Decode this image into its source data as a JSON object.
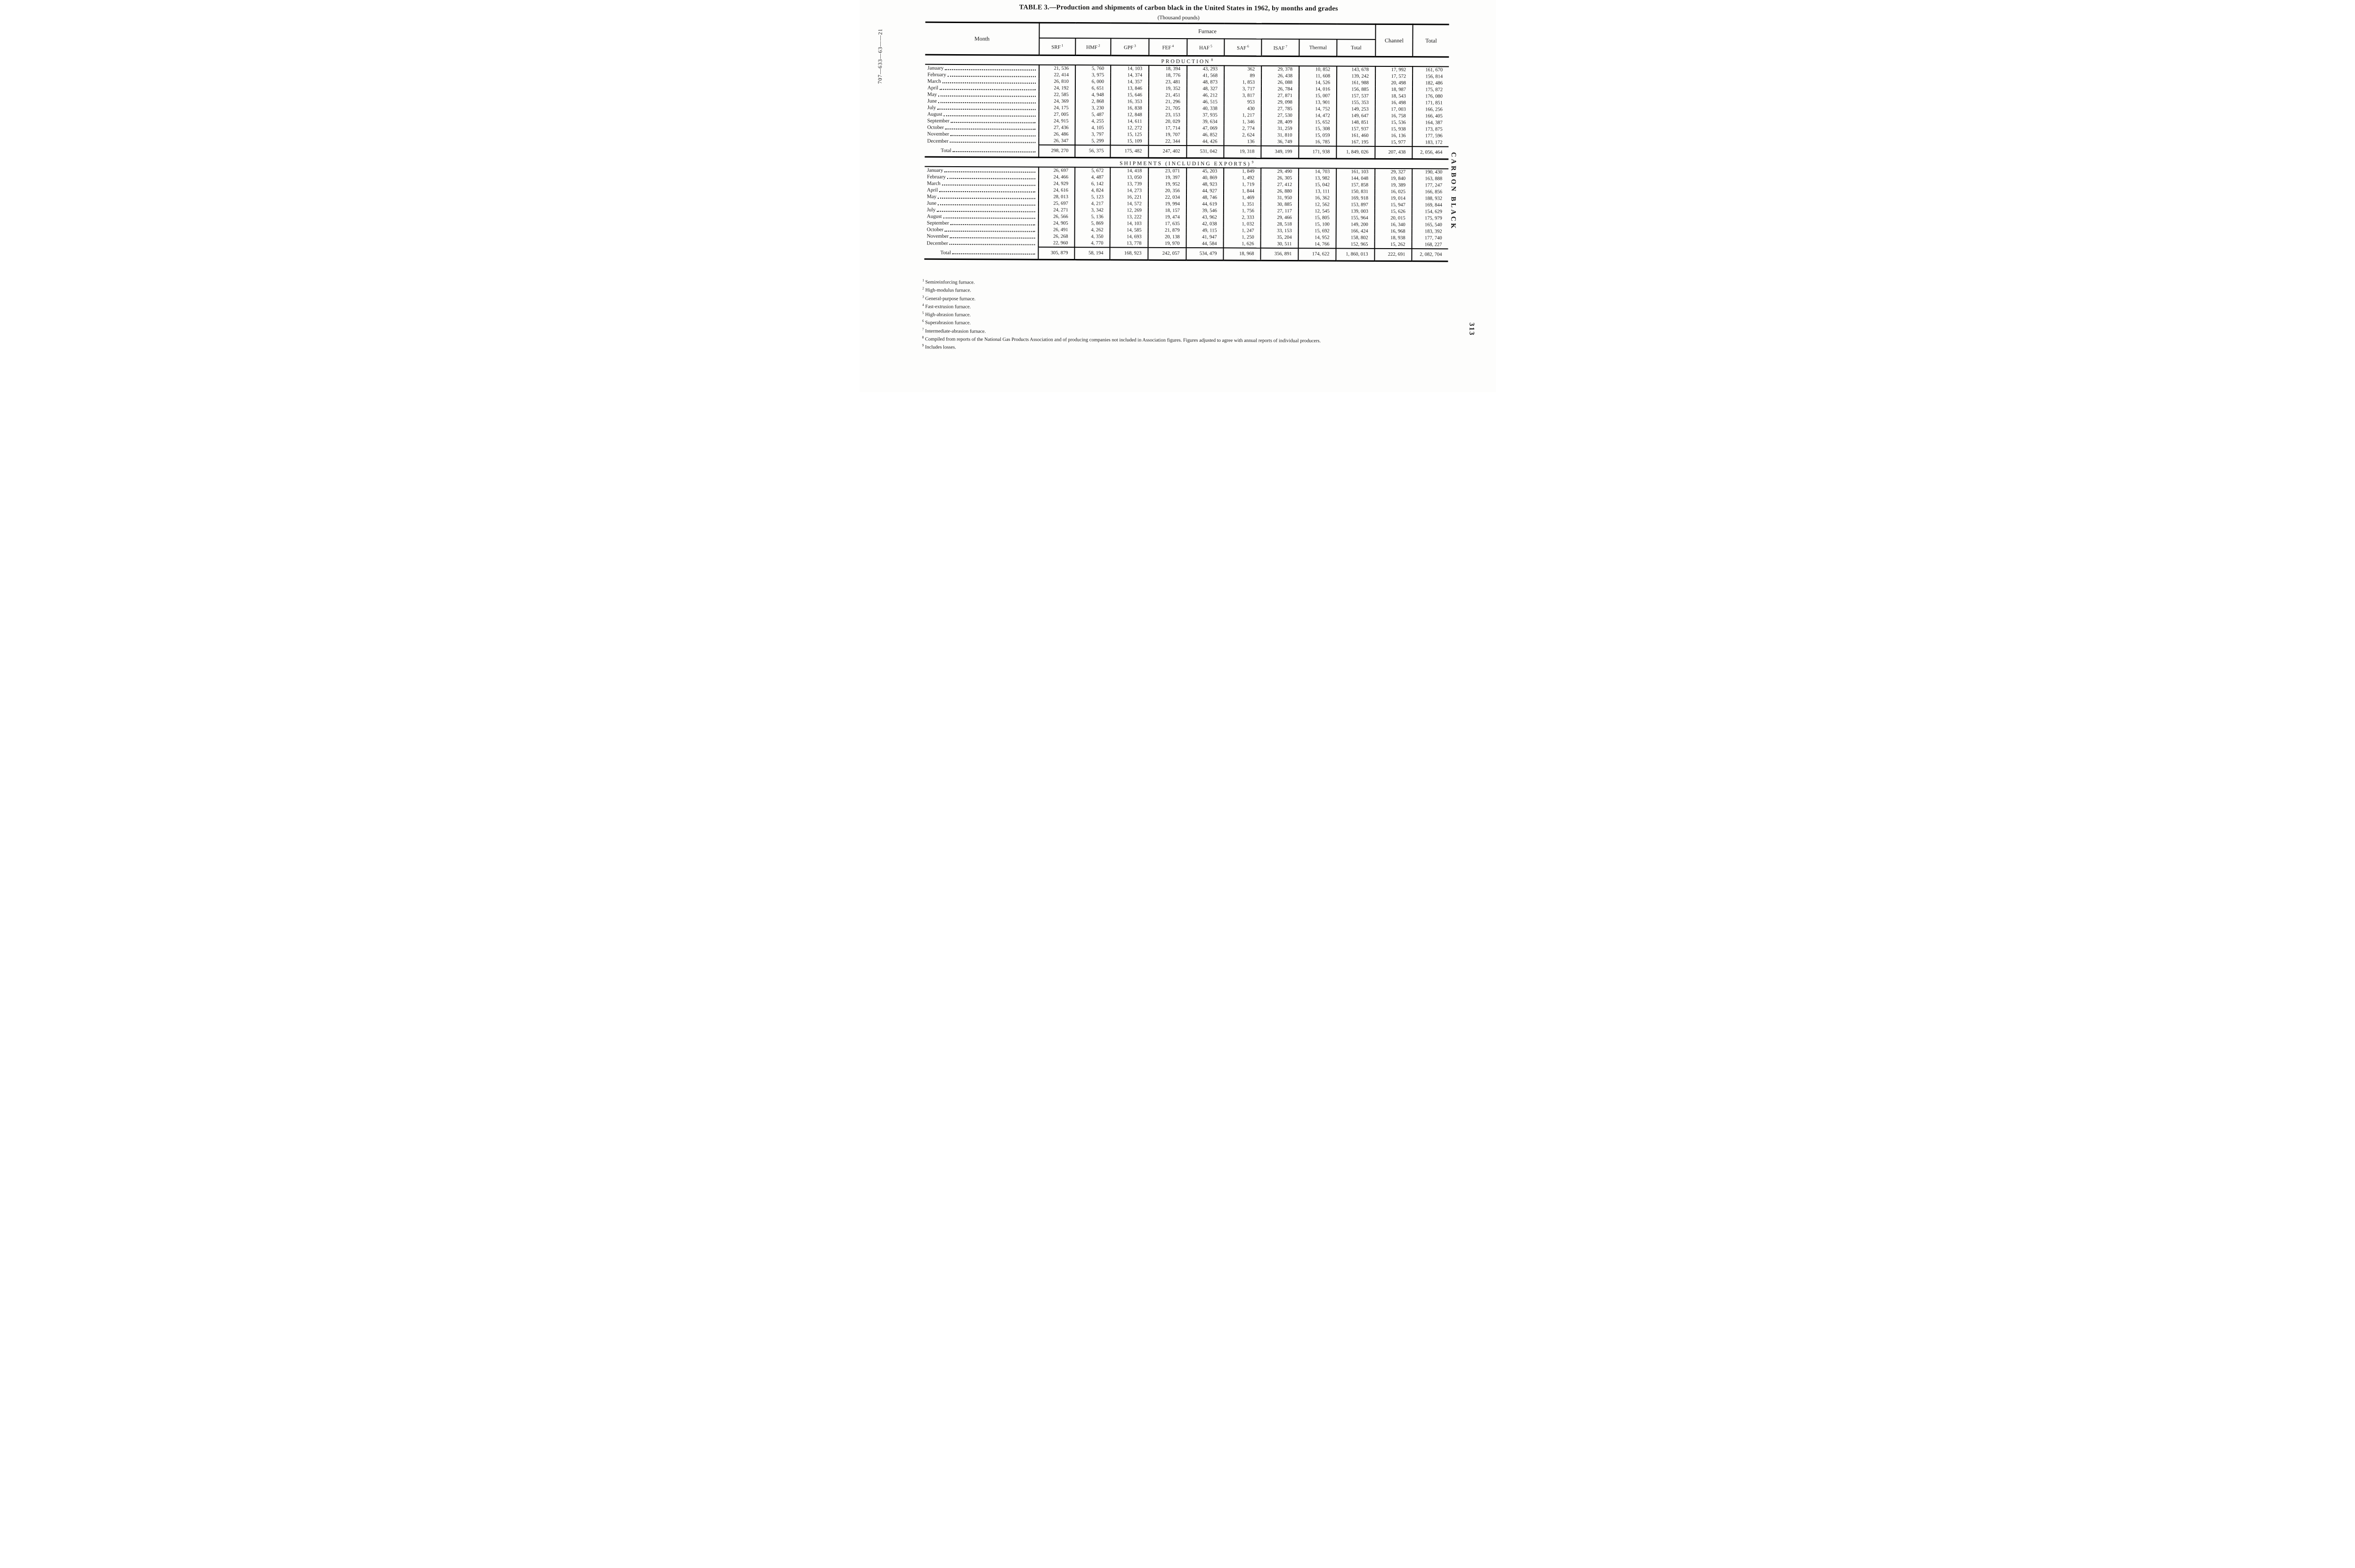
{
  "page": {
    "title": "TABLE 3.—Production and shipments of carbon black in the United States in 1962, by months and grades",
    "subtitle": "(Thousand pounds)",
    "left_margin_code": "707—633—63——21",
    "right_margin_heading": "CARBON BLACK",
    "page_number": "313"
  },
  "table": {
    "col_month": "Month",
    "group_furnace": "Furnace",
    "col_channel": "Channel",
    "col_total": "Total",
    "furnace_cols": [
      {
        "label": "SRF",
        "sup": "1"
      },
      {
        "label": "HMF",
        "sup": "2"
      },
      {
        "label": "GPF",
        "sup": "3"
      },
      {
        "label": "FEF",
        "sup": "4"
      },
      {
        "label": "HAF",
        "sup": "5"
      },
      {
        "label": "SAF",
        "sup": "6"
      },
      {
        "label": "ISAF",
        "sup": "7"
      },
      {
        "label": "Thermal",
        "sup": ""
      },
      {
        "label": "Total",
        "sup": ""
      }
    ],
    "sections": [
      {
        "heading": "PRODUCTION",
        "sup": "8",
        "rows": [
          {
            "month": "January",
            "values": [
              "21, 536",
              "5, 760",
              "14, 103",
              "18, 394",
              "43, 293",
              "362",
              "29, 378",
              "10, 852",
              "143, 678",
              "17, 992",
              "161, 670"
            ]
          },
          {
            "month": "February",
            "values": [
              "22, 414",
              "3, 975",
              "14, 374",
              "18, 776",
              "41, 568",
              "89",
              "26, 438",
              "11, 608",
              "139, 242",
              "17, 572",
              "156, 814"
            ]
          },
          {
            "month": "March",
            "values": [
              "26, 810",
              "6, 000",
              "14, 357",
              "23, 481",
              "48, 873",
              "1, 853",
              "26, 088",
              "14, 526",
              "161, 988",
              "20, 498",
              "182, 486"
            ]
          },
          {
            "month": "April",
            "values": [
              "24, 192",
              "6, 651",
              "13, 846",
              "19, 352",
              "48, 327",
              "3, 717",
              "26, 784",
              "14, 016",
              "156, 885",
              "18, 987",
              "175, 872"
            ]
          },
          {
            "month": "May",
            "values": [
              "22, 585",
              "4, 948",
              "15, 646",
              "21, 451",
              "46, 212",
              "3, 817",
              "27, 871",
              "15, 007",
              "157, 537",
              "18, 543",
              "176, 080"
            ]
          },
          {
            "month": "June",
            "values": [
              "24, 369",
              "2, 868",
              "16, 353",
              "21, 296",
              "46, 515",
              "953",
              "29, 098",
              "13, 901",
              "155, 353",
              "16, 498",
              "171, 851"
            ]
          },
          {
            "month": "July",
            "values": [
              "24, 175",
              "3, 230",
              "16, 838",
              "21, 705",
              "40, 338",
              "430",
              "27, 785",
              "14, 752",
              "149, 253",
              "17, 003",
              "166, 256"
            ]
          },
          {
            "month": "August",
            "values": [
              "27, 005",
              "5, 487",
              "12, 848",
              "23, 153",
              "37, 935",
              "1, 217",
              "27, 530",
              "14, 472",
              "149, 647",
              "16, 758",
              "166, 405"
            ]
          },
          {
            "month": "September",
            "values": [
              "24, 915",
              "4, 255",
              "14, 611",
              "20, 029",
              "39, 634",
              "1, 346",
              "28, 409",
              "15, 652",
              "148, 851",
              "15, 536",
              "164, 387"
            ]
          },
          {
            "month": "October",
            "values": [
              "27, 436",
              "4, 105",
              "12, 272",
              "17, 714",
              "47, 069",
              "2, 774",
              "31, 259",
              "15, 308",
              "157, 937",
              "15, 938",
              "173, 875"
            ]
          },
          {
            "month": "November",
            "values": [
              "26, 486",
              "3, 797",
              "15, 125",
              "19, 707",
              "46, 852",
              "2, 624",
              "31, 810",
              "15, 059",
              "161, 460",
              "16, 136",
              "177, 596"
            ]
          },
          {
            "month": "December",
            "values": [
              "26, 347",
              "5, 299",
              "15, 109",
              "22, 344",
              "44, 426",
              "136",
              "36, 749",
              "16, 785",
              "167, 195",
              "15, 977",
              "183, 172"
            ]
          }
        ],
        "total_label": "Total",
        "total_values": [
          "298, 270",
          "56, 375",
          "175, 482",
          "247, 402",
          "531, 042",
          "19, 318",
          "349, 199",
          "171, 938",
          "1, 849, 026",
          "207, 438",
          "2, 056, 464"
        ]
      },
      {
        "heading": "SHIPMENTS (INCLUDING EXPORTS)",
        "sup": "9",
        "rows": [
          {
            "month": "January",
            "values": [
              "26, 697",
              "5, 672",
              "14, 418",
              "23, 071",
              "45, 203",
              "1, 849",
              "29, 490",
              "14, 703",
              "161, 103",
              "29, 327",
              "190, 430"
            ]
          },
          {
            "month": "February",
            "values": [
              "24, 466",
              "4, 487",
              "13, 050",
              "19, 397",
              "40, 869",
              "1, 492",
              "26, 305",
              "13, 982",
              "144, 048",
              "19, 840",
              "163, 888"
            ]
          },
          {
            "month": "March",
            "values": [
              "24, 929",
              "6, 142",
              "13, 739",
              "19, 952",
              "48, 923",
              "1, 719",
              "27, 412",
              "15, 042",
              "157, 858",
              "19, 389",
              "177, 247"
            ]
          },
          {
            "month": "April",
            "values": [
              "24, 616",
              "4, 824",
              "14, 273",
              "20, 356",
              "44, 927",
              "1, 844",
              "26, 880",
              "13, 111",
              "150, 831",
              "16, 025",
              "166, 856"
            ]
          },
          {
            "month": "May",
            "values": [
              "28, 013",
              "5, 123",
              "16, 221",
              "22, 034",
              "48, 746",
              "1, 469",
              "31, 950",
              "16, 362",
              "169, 918",
              "19, 014",
              "188, 932"
            ]
          },
          {
            "month": "June",
            "values": [
              "25, 697",
              "4, 217",
              "14, 572",
              "19, 994",
              "44, 619",
              "1, 351",
              "30, 885",
              "12, 562",
              "153, 897",
              "15, 947",
              "169, 844"
            ]
          },
          {
            "month": "July",
            "values": [
              "24, 271",
              "3, 342",
              "12, 269",
              "18, 157",
              "39, 546",
              "1, 756",
              "27, 117",
              "12, 545",
              "139, 003",
              "15, 626",
              "154, 629"
            ]
          },
          {
            "month": "August",
            "values": [
              "26, 566",
              "5, 136",
              "13, 222",
              "19, 474",
              "43, 962",
              "2, 333",
              "29, 466",
              "15, 805",
              "155, 964",
              "20, 015",
              "175, 979"
            ]
          },
          {
            "month": "September",
            "values": [
              "24, 905",
              "5, 869",
              "14, 103",
              "17, 635",
              "42, 038",
              "1, 032",
              "28, 518",
              "15, 100",
              "149, 200",
              "16, 340",
              "165, 540"
            ]
          },
          {
            "month": "October",
            "values": [
              "26, 491",
              "4, 262",
              "14, 585",
              "21, 879",
              "49, 115",
              "1, 247",
              "33, 153",
              "15, 692",
              "166, 424",
              "16, 968",
              "183, 392"
            ]
          },
          {
            "month": "November",
            "values": [
              "26, 268",
              "4, 350",
              "14, 693",
              "20, 138",
              "41, 947",
              "1, 250",
              "35, 204",
              "14, 952",
              "158, 802",
              "18, 938",
              "177, 740"
            ]
          },
          {
            "month": "December",
            "values": [
              "22, 960",
              "4, 770",
              "13, 778",
              "19, 970",
              "44, 584",
              "1, 626",
              "30, 511",
              "14, 766",
              "152, 965",
              "15, 262",
              "168, 227"
            ]
          }
        ],
        "total_label": "Total",
        "total_values": [
          "305, 879",
          "58, 194",
          "168, 923",
          "242, 057",
          "534, 479",
          "18, 968",
          "356, 891",
          "174, 622",
          "1, 860, 013",
          "222, 691",
          "2, 082, 704"
        ]
      }
    ]
  },
  "footnotes": [
    {
      "sup": "1",
      "text": "Semireinforcing furnace."
    },
    {
      "sup": "2",
      "text": "High-modulus furnace."
    },
    {
      "sup": "3",
      "text": "General-purpose furnace."
    },
    {
      "sup": "4",
      "text": "Fast-extrusion furnace."
    },
    {
      "sup": "5",
      "text": "High-abrasion furnace."
    },
    {
      "sup": "6",
      "text": "Superabrasion furnace."
    },
    {
      "sup": "7",
      "text": "Intermediate-abrasion furnace."
    },
    {
      "sup": "8",
      "text": "Compiled from reports of the National Gas Products Association and of producing companies not included in Association figures.  Figures adjusted to agree with annual reports of individual producers."
    },
    {
      "sup": "9",
      "text": "Includes losses."
    }
  ],
  "colors": {
    "ink": "#141414",
    "paper": "#fdfdfc",
    "rule": "#000000"
  }
}
